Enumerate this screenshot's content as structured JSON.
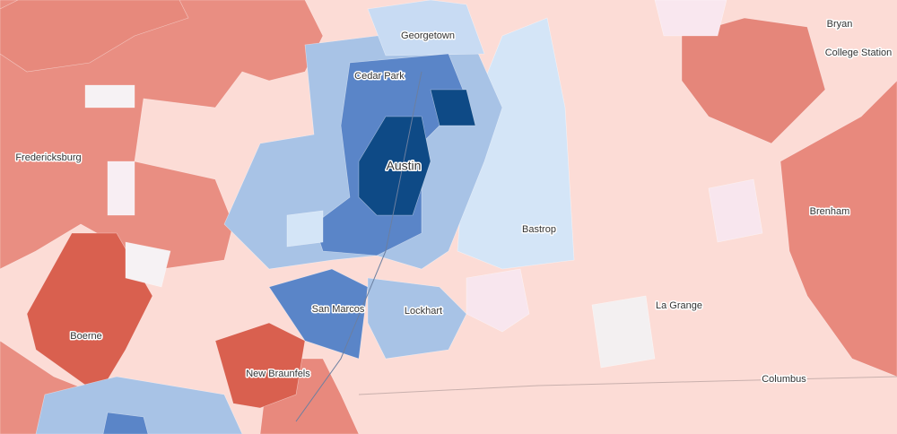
{
  "map": {
    "places": [
      {
        "name": "Georgetown"
      },
      {
        "name": "Cedar Park"
      },
      {
        "name": "Bryan"
      },
      {
        "name": "College Station"
      },
      {
        "name": "Fredericksburg"
      },
      {
        "name": "Austin"
      },
      {
        "name": "Bastrop"
      },
      {
        "name": "Brenham"
      },
      {
        "name": "La Grange"
      },
      {
        "name": "San Marcos"
      },
      {
        "name": "Lockhart"
      },
      {
        "name": "Boerne"
      },
      {
        "name": "New Braunfels"
      },
      {
        "name": "Columbus"
      }
    ]
  }
}
